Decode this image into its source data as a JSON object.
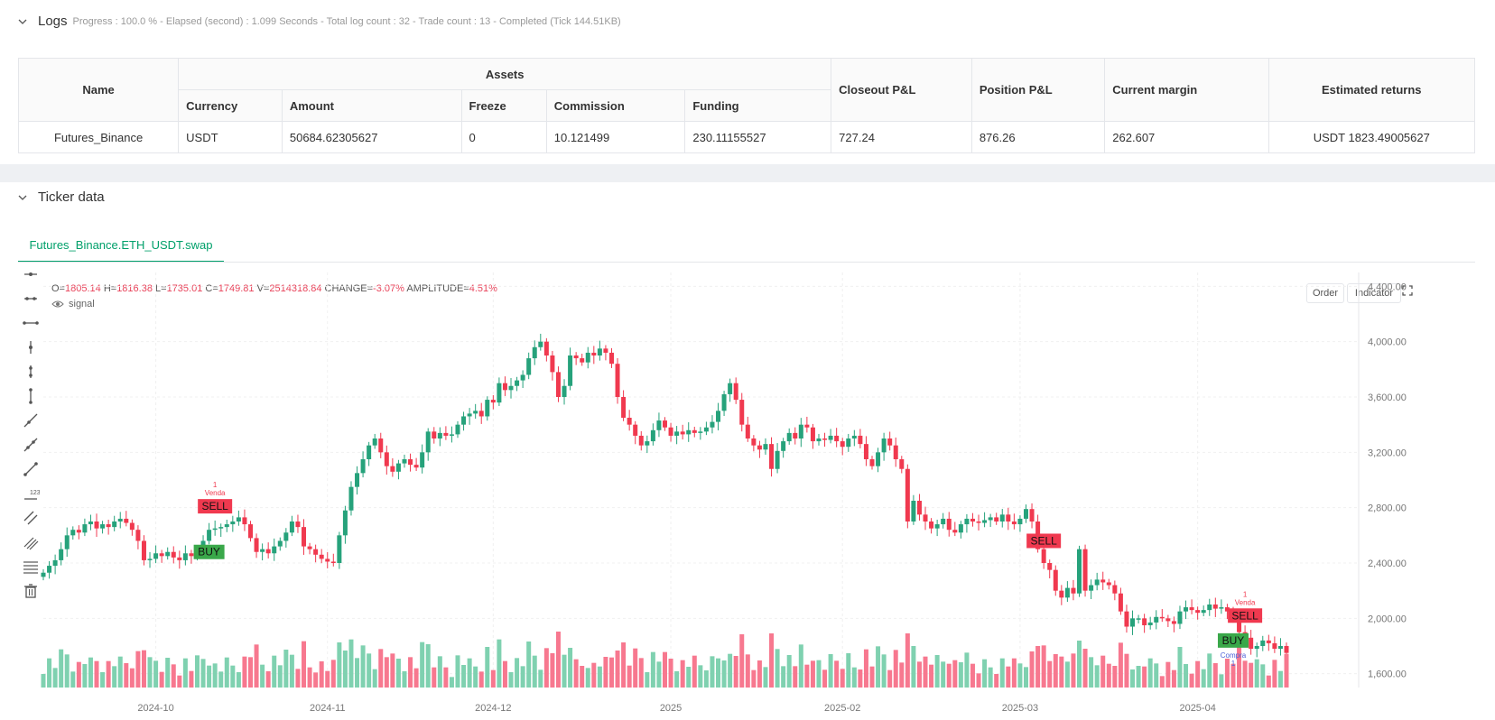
{
  "logs": {
    "title": "Logs",
    "summary": "Progress : 100.0 % - Elapsed (second) : 1.099   Seconds - Total log count : 32 - Trade count : 13 - Completed (Tick 144.51KB)",
    "table": {
      "name_header": "Name",
      "assets_header": "Assets",
      "sub_headers": [
        "Currency",
        "Amount",
        "Freeze",
        "Commission",
        "Funding"
      ],
      "closeout_header": "Closeout P&L",
      "position_header": "Position P&L",
      "margin_header": "Current margin",
      "returns_header": "Estimated returns",
      "row": {
        "name": "Futures_Binance",
        "currency": "USDT",
        "amount": "50684.62305627",
        "freeze": "0",
        "commission": "10.121499",
        "funding": "230.11155527",
        "closeout": "727.24",
        "position": "876.26",
        "margin": "262.607",
        "returns": "USDT 1823.49005627"
      }
    }
  },
  "ticker": {
    "title": "Ticker data",
    "tab": "Futures_Binance.ETH_USDT.swap",
    "ohlc": {
      "o_label": "O=",
      "o": "1805.14",
      "h_label": "H=",
      "h": "1816.38",
      "l_label": "L=",
      "l": "1735.01",
      "c_label": "C=",
      "c": "1749.81",
      "v_label": "V=",
      "v": "2514318.84",
      "change_label": "CHANGE=",
      "change": "-3.07%",
      "amp_label": "AMPLITUDE=",
      "amp": "4.51%"
    },
    "signal_label": "signal",
    "order_btn": "Order",
    "indicator_btn": "Indicator"
  },
  "colors": {
    "up": "#26a27b",
    "down": "#f0394f",
    "vol_up": "#7fd1b0",
    "vol_down": "#f7788f",
    "accent": "#00a06a"
  },
  "chart_data": {
    "type": "candlestick",
    "y_ticks": [
      "4,400.00",
      "4,000.00",
      "3,600.00",
      "3,200.00",
      "2,800.00",
      "2,400.00",
      "2,000.00",
      "1,600.00"
    ],
    "ylim": [
      1500,
      4500
    ],
    "x_ticks": [
      "2024-10",
      "2024-11",
      "2024-12",
      "2025",
      "2025-02",
      "2025-03",
      "2025-04"
    ],
    "closes": [
      2330,
      2380,
      2420,
      2500,
      2600,
      2640,
      2620,
      2680,
      2700,
      2650,
      2680,
      2660,
      2700,
      2720,
      2690,
      2640,
      2560,
      2420,
      2430,
      2470,
      2450,
      2480,
      2440,
      2420,
      2470,
      2450,
      2490,
      2560,
      2640,
      2650,
      2660,
      2680,
      2700,
      2730,
      2680,
      2580,
      2480,
      2500,
      2470,
      2520,
      2560,
      2620,
      2700,
      2660,
      2520,
      2500,
      2460,
      2430,
      2410,
      2400,
      2600,
      2780,
      2950,
      3050,
      3150,
      3250,
      3300,
      3200,
      3100,
      3060,
      3120,
      3150,
      3110,
      3090,
      3200,
      3350,
      3300,
      3340,
      3320,
      3330,
      3400,
      3460,
      3480,
      3500,
      3460,
      3580,
      3560,
      3700,
      3650,
      3680,
      3720,
      3760,
      3880,
      3960,
      4000,
      3900,
      3780,
      3600,
      3680,
      3900,
      3880,
      3850,
      3920,
      3900,
      3950,
      3920,
      3840,
      3600,
      3450,
      3400,
      3320,
      3250,
      3280,
      3360,
      3430,
      3380,
      3320,
      3350,
      3330,
      3360,
      3340,
      3350,
      3380,
      3420,
      3500,
      3620,
      3700,
      3580,
      3400,
      3300,
      3250,
      3220,
      3260,
      3080,
      3210,
      3280,
      3340,
      3300,
      3400,
      3380,
      3280,
      3300,
      3290,
      3320,
      3280,
      3240,
      3300,
      3320,
      3260,
      3150,
      3100,
      3200,
      3300,
      3250,
      3150,
      3080,
      2700,
      2850,
      2750,
      2700,
      2650,
      2680,
      2720,
      2640,
      2620,
      2680,
      2720,
      2700,
      2690,
      2710,
      2730,
      2700,
      2750,
      2700,
      2680,
      2720,
      2790,
      2700,
      2500,
      2400,
      2350,
      2200,
      2150,
      2220,
      2180,
      2500,
      2200,
      2240,
      2280,
      2260,
      2240,
      2180,
      2050,
      1940,
      2000,
      2000,
      1950,
      1970,
      2010,
      2000,
      1980,
      1960,
      2050,
      2080,
      2060,
      2040,
      2060,
      2100,
      2070,
      2080,
      2050,
      2000,
      1900,
      1860,
      1780,
      1800,
      1840,
      1820,
      1780,
      1800,
      1750
    ],
    "signals": [
      {
        "index": 29,
        "type": "SELL",
        "label": "Venda",
        "qty": "1"
      },
      {
        "index": 28,
        "type": "BUY",
        "label": "",
        "qty": ""
      },
      {
        "index": 203,
        "type": "SELL",
        "label": "Venda",
        "qty": "1"
      },
      {
        "index": 201,
        "type": "BUY",
        "label": "Compra",
        "qty": "1"
      },
      {
        "index": 169,
        "type": "SELL",
        "label": "",
        "qty": ""
      }
    ],
    "xlabel": "",
    "ylabel": ""
  }
}
